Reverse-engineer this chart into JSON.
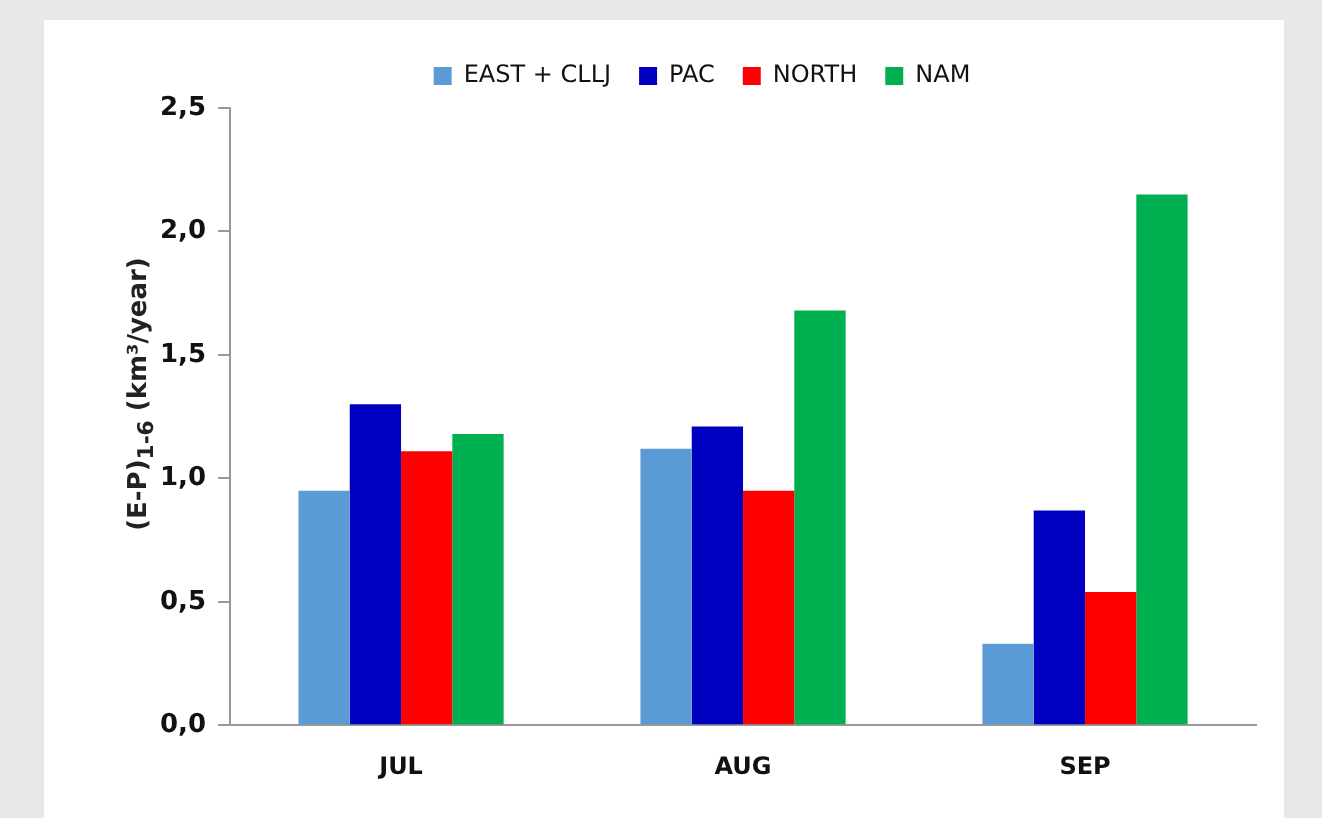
{
  "chart_data": {
    "type": "bar",
    "ylabel": "(E-P)$_{1-6}$ (km³/year)",
    "categories": [
      "JUL",
      "AUG",
      "SEP"
    ],
    "series": [
      {
        "name": "EAST + CLLJ",
        "color": "#5b9bd5",
        "values": [
          0.95,
          1.12,
          0.33
        ]
      },
      {
        "name": "PAC",
        "color": "#0000c0",
        "values": [
          1.3,
          1.21,
          0.87
        ]
      },
      {
        "name": "NORTH",
        "color": "#ff0000",
        "values": [
          1.11,
          0.95,
          0.54
        ]
      },
      {
        "name": "NAM",
        "color": "#00b050",
        "values": [
          1.18,
          1.68,
          2.15
        ]
      }
    ],
    "ylim": [
      0,
      2.5
    ],
    "yticks": [
      {
        "value": 0,
        "label": "0,0"
      },
      {
        "value": 0.5,
        "label": "0,5"
      },
      {
        "value": 1,
        "label": "1,0"
      },
      {
        "value": 1.5,
        "label": "1,5"
      },
      {
        "value": 2,
        "label": "2,0"
      },
      {
        "value": 2.5,
        "label": "2,5"
      }
    ],
    "grid": false,
    "legend": "top"
  }
}
